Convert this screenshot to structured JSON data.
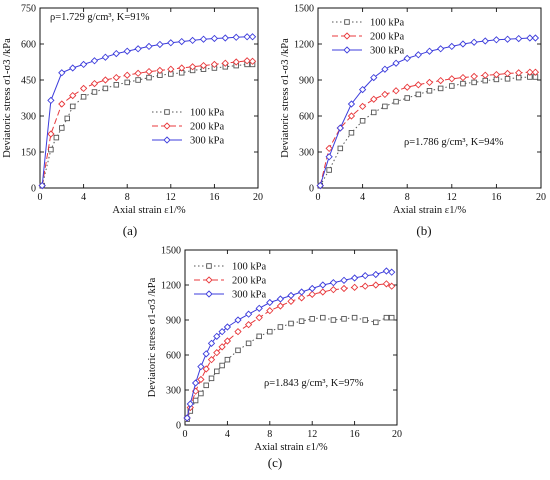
{
  "colors": {
    "100 kPa": "#555555",
    "200 kPa": "#e8393c",
    "300 kPa": "#3d3ddc"
  },
  "chart_data": [
    {
      "type": "line",
      "panel_label": "(a)",
      "annotation": "ρ=1.729 g/cm³, K=91%",
      "xlabel": "Axial strain ε1/%",
      "ylabel": "Deviatoric stress σ1-σ3 /kPa",
      "xlim": [
        0,
        20
      ],
      "ylim": [
        0,
        750
      ],
      "xticks": [
        0,
        4,
        8,
        12,
        16,
        20
      ],
      "yticks": [
        0,
        150,
        300,
        450,
        600,
        750
      ],
      "legend": "center-right",
      "series": [
        {
          "name": "100 kPa",
          "x": [
            0.2,
            1,
            1.5,
            2,
            2.5,
            3,
            4,
            5,
            6,
            7,
            8,
            9,
            10,
            11,
            12,
            13,
            14,
            15,
            16,
            17,
            18,
            19,
            19.5
          ],
          "y": [
            10,
            160,
            210,
            250,
            290,
            340,
            380,
            400,
            415,
            430,
            440,
            450,
            460,
            470,
            475,
            480,
            490,
            495,
            500,
            505,
            510,
            515,
            515
          ]
        },
        {
          "name": "200 kPa",
          "x": [
            0.2,
            1,
            2,
            3,
            4,
            5,
            6,
            7,
            8,
            9,
            10,
            11,
            12,
            13,
            14,
            15,
            16,
            17,
            18,
            19,
            19.5
          ],
          "y": [
            10,
            225,
            350,
            385,
            415,
            435,
            450,
            460,
            470,
            478,
            485,
            490,
            495,
            500,
            505,
            510,
            515,
            520,
            525,
            530,
            528
          ]
        },
        {
          "name": "300 kPa",
          "x": [
            0.2,
            1,
            2,
            3,
            4,
            5,
            6,
            7,
            8,
            9,
            10,
            11,
            12,
            13,
            14,
            15,
            16,
            17,
            18,
            19,
            19.5
          ],
          "y": [
            10,
            365,
            480,
            500,
            515,
            530,
            545,
            560,
            570,
            580,
            590,
            598,
            605,
            610,
            615,
            620,
            623,
            625,
            628,
            630,
            630
          ]
        }
      ]
    },
    {
      "type": "line",
      "panel_label": "(b)",
      "annotation": "ρ=1.786 g/cm³, K=94%",
      "xlabel": "Axial strain ε1/%",
      "ylabel": "Deviatoric stress σ1-σ3 /kPa",
      "xlim": [
        0,
        20
      ],
      "ylim": [
        0,
        1500
      ],
      "xticks": [
        0,
        4,
        8,
        12,
        16,
        20
      ],
      "yticks": [
        0,
        300,
        600,
        900,
        1200,
        1500
      ],
      "legend": "top-left",
      "series": [
        {
          "name": "100 kPa",
          "x": [
            0.2,
            1,
            2,
            3,
            4,
            5,
            6,
            7,
            8,
            9,
            10,
            11,
            12,
            13,
            14,
            15,
            16,
            17,
            18,
            19,
            19.5
          ],
          "y": [
            20,
            150,
            330,
            460,
            560,
            630,
            680,
            720,
            750,
            780,
            810,
            830,
            850,
            870,
            880,
            895,
            905,
            910,
            920,
            925,
            925
          ]
        },
        {
          "name": "200 kPa",
          "x": [
            0.2,
            1,
            2,
            3,
            4,
            5,
            6,
            7,
            8,
            9,
            10,
            11,
            12,
            13,
            14,
            15,
            16,
            17,
            18,
            19,
            19.5
          ],
          "y": [
            20,
            330,
            500,
            600,
            680,
            740,
            780,
            810,
            840,
            860,
            880,
            895,
            910,
            920,
            930,
            940,
            945,
            955,
            960,
            965,
            965
          ]
        },
        {
          "name": "300 kPa",
          "x": [
            0.2,
            1,
            2,
            3,
            4,
            5,
            6,
            7,
            8,
            9,
            10,
            11,
            12,
            13,
            14,
            15,
            16,
            17,
            18,
            19,
            19.5
          ],
          "y": [
            20,
            260,
            500,
            700,
            820,
            920,
            990,
            1040,
            1080,
            1110,
            1140,
            1160,
            1180,
            1200,
            1215,
            1225,
            1235,
            1240,
            1245,
            1250,
            1250
          ]
        }
      ]
    },
    {
      "type": "line",
      "panel_label": "(c)",
      "annotation": "ρ=1.843 g/cm³, K=97%",
      "xlabel": "Axial strain ε1/%",
      "ylabel": "Deviatoric stress σ1-σ3 /kPa",
      "xlim": [
        0,
        20
      ],
      "ylim": [
        0,
        1500
      ],
      "xticks": [
        0,
        4,
        8,
        12,
        16,
        20
      ],
      "yticks": [
        0,
        300,
        600,
        900,
        1200,
        1500
      ],
      "legend": "top-left",
      "series": [
        {
          "name": "100 kPa",
          "x": [
            0.2,
            0.5,
            1,
            1.5,
            2,
            2.5,
            3,
            3.5,
            4,
            5,
            6,
            7,
            8,
            9,
            10,
            11,
            12,
            13,
            14,
            15,
            16,
            17,
            18,
            19,
            19.5
          ],
          "y": [
            50,
            120,
            210,
            270,
            340,
            400,
            460,
            510,
            560,
            640,
            700,
            760,
            800,
            840,
            870,
            890,
            910,
            920,
            900,
            910,
            920,
            900,
            880,
            920,
            920
          ]
        },
        {
          "name": "200 kPa",
          "x": [
            0.2,
            0.5,
            1,
            1.5,
            2,
            2.5,
            3,
            3.5,
            4,
            5,
            6,
            7,
            8,
            9,
            10,
            11,
            12,
            13,
            14,
            15,
            16,
            17,
            18,
            19,
            19.5
          ],
          "y": [
            60,
            150,
            290,
            390,
            480,
            560,
            620,
            670,
            720,
            800,
            860,
            920,
            980,
            1020,
            1060,
            1090,
            1120,
            1140,
            1160,
            1170,
            1180,
            1190,
            1200,
            1210,
            1190
          ]
        },
        {
          "name": "300 kPa",
          "x": [
            0.2,
            0.5,
            1,
            1.5,
            2,
            2.5,
            3,
            3.5,
            4,
            5,
            6,
            7,
            8,
            9,
            10,
            11,
            12,
            13,
            14,
            15,
            16,
            17,
            18,
            19,
            19.5
          ],
          "y": [
            60,
            180,
            360,
            500,
            610,
            700,
            760,
            800,
            840,
            900,
            950,
            1000,
            1050,
            1080,
            1110,
            1140,
            1170,
            1200,
            1220,
            1240,
            1260,
            1280,
            1290,
            1320,
            1310
          ]
        }
      ]
    }
  ]
}
